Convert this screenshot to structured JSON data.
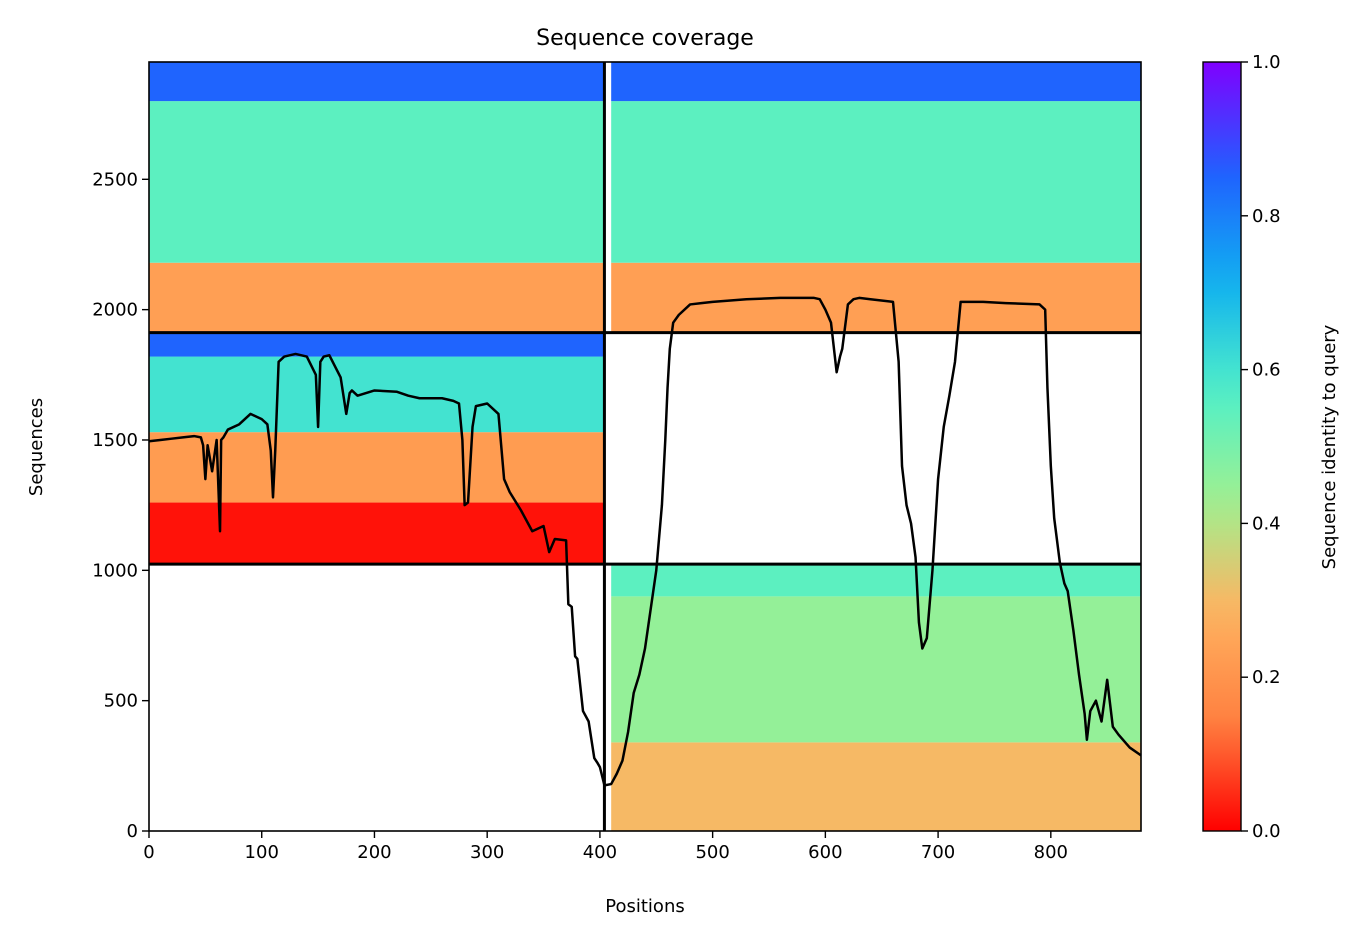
{
  "chart_data": {
    "type": "heatmap",
    "title": "Sequence coverage",
    "xlabel": "Positions",
    "ylabel": "Sequences",
    "xlim": [
      0,
      880
    ],
    "ylim": [
      0,
      2950
    ],
    "xticks": [
      "0",
      "100",
      "200",
      "300",
      "400",
      "500",
      "600",
      "700",
      "800"
    ],
    "yticks": [
      "0",
      "500",
      "1000",
      "1500",
      "2000",
      "2500"
    ],
    "colorbar": {
      "label": "Sequence identity to query",
      "range": [
        0,
        1
      ],
      "ticks": [
        "0.0",
        "0.2",
        "0.4",
        "0.6",
        "0.8",
        "1.0"
      ],
      "colormap": "rainbow",
      "colors": [
        "#ff0000",
        "#ff8040",
        "#ffb360",
        "#a0f090",
        "#50f0c8",
        "#10b0f0",
        "#2060ff",
        "#8000ff"
      ]
    },
    "dividers": {
      "x": [
        404
      ],
      "y": [
        1024,
        1912
      ]
    },
    "blocks": [
      {
        "x": [
          0,
          404
        ],
        "y": [
          1912,
          2950
        ],
        "bands": [
          {
            "y": [
              1912,
              2180
            ],
            "identity": 0.23
          },
          {
            "y": [
              2180,
              2800
            ],
            "identity": 0.55
          },
          {
            "y": [
              2800,
              2950
            ],
            "identity": 0.85
          }
        ]
      },
      {
        "x": [
          410,
          880
        ],
        "y": [
          1912,
          2950
        ],
        "bands": [
          {
            "y": [
              1912,
              2180
            ],
            "identity": 0.23
          },
          {
            "y": [
              2180,
              2800
            ],
            "identity": 0.55
          },
          {
            "y": [
              2800,
              2950
            ],
            "identity": 0.85
          }
        ]
      },
      {
        "x": [
          0,
          404
        ],
        "y": [
          1024,
          1912
        ],
        "bands": [
          {
            "y": [
              1024,
              1260
            ],
            "identity": 0.02
          },
          {
            "y": [
              1260,
              1530
            ],
            "identity": 0.22
          },
          {
            "y": [
              1530,
              1820
            ],
            "identity": 0.6
          },
          {
            "y": [
              1820,
              1912
            ],
            "identity": 0.85
          }
        ]
      },
      {
        "x": [
          410,
          880
        ],
        "y": [
          0,
          1024
        ],
        "bands": [
          {
            "y": [
              0,
              340
            ],
            "identity": 0.3
          },
          {
            "y": [
              340,
              900
            ],
            "identity": 0.45
          },
          {
            "y": [
              900,
              1024
            ],
            "identity": 0.55
          }
        ]
      }
    ],
    "series": [
      {
        "color": "#000000",
        "x": [
          0,
          10,
          20,
          30,
          40,
          46,
          48,
          50,
          52,
          56,
          60,
          63,
          64,
          66,
          70,
          80,
          90,
          95,
          100,
          105,
          108,
          110,
          112,
          115,
          120,
          130,
          140,
          148,
          150,
          152,
          155,
          160,
          170,
          175,
          178,
          180,
          185,
          200,
          220,
          230,
          240,
          260,
          270,
          275,
          278,
          280,
          283,
          287,
          290,
          300,
          310,
          315,
          320,
          330,
          340,
          350,
          355,
          360,
          370,
          372,
          375,
          378,
          380,
          385,
          390,
          395,
          398,
          400,
          404,
          410,
          415,
          420,
          425,
          430,
          435,
          440,
          445,
          450,
          455,
          458,
          460,
          462,
          465,
          470,
          480,
          490,
          500,
          530,
          560,
          590,
          595,
          600,
          605,
          610,
          613,
          615,
          620,
          625,
          630,
          640,
          660,
          665,
          668,
          672,
          676,
          680,
          683,
          686,
          690,
          695,
          700,
          705,
          710,
          715,
          720,
          740,
          760,
          790,
          795,
          797,
          800,
          803,
          808,
          812,
          815,
          820,
          825,
          830,
          832,
          835,
          840,
          845,
          850,
          855,
          860,
          870,
          880
        ],
        "y": [
          1495,
          1500,
          1505,
          1510,
          1515,
          1510,
          1480,
          1350,
          1480,
          1380,
          1500,
          1150,
          1500,
          1510,
          1540,
          1560,
          1600,
          1590,
          1580,
          1560,
          1460,
          1280,
          1460,
          1800,
          1820,
          1830,
          1820,
          1750,
          1550,
          1800,
          1820,
          1825,
          1740,
          1600,
          1680,
          1690,
          1670,
          1690,
          1685,
          1670,
          1660,
          1660,
          1650,
          1640,
          1500,
          1250,
          1260,
          1550,
          1630,
          1640,
          1600,
          1350,
          1300,
          1230,
          1150,
          1170,
          1070,
          1120,
          1115,
          870,
          860,
          670,
          660,
          460,
          420,
          280,
          260,
          245,
          175,
          180,
          220,
          270,
          380,
          530,
          600,
          700,
          850,
          1000,
          1250,
          1500,
          1700,
          1850,
          1950,
          1980,
          2020,
          2025,
          2030,
          2040,
          2045,
          2045,
          2040,
          2000,
          1950,
          1760,
          1820,
          1850,
          2020,
          2040,
          2045,
          2040,
          2030,
          1800,
          1400,
          1250,
          1180,
          1050,
          800,
          700,
          740,
          1000,
          1350,
          1550,
          1670,
          1800,
          2030,
          2030,
          2025,
          2020,
          2000,
          1700,
          1400,
          1200,
          1030,
          950,
          920,
          770,
          600,
          450,
          350,
          460,
          500,
          420,
          580,
          400,
          370,
          320,
          290
        ]
      }
    ]
  }
}
